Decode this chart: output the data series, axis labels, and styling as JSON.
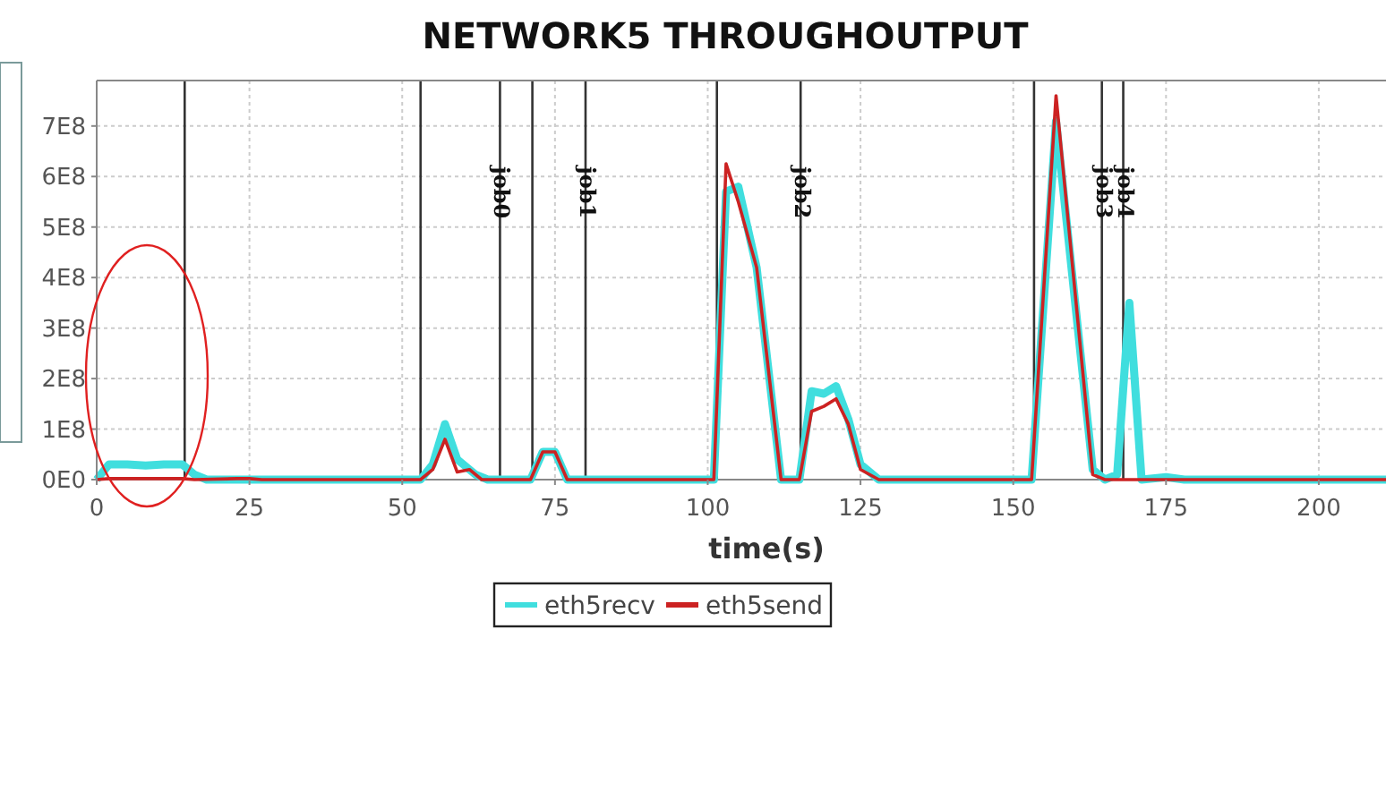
{
  "chart_data": {
    "type": "line",
    "title": "NETWORK5 THROUGHOUTPUT",
    "xlabel": "time(s)",
    "xlim": [
      0,
      211
    ],
    "xticks": [
      0,
      25,
      50,
      75,
      100,
      125,
      150,
      175,
      200
    ],
    "ylim": [
      0,
      790000000
    ],
    "yticks": [
      {
        "value": 0,
        "label": "0E0"
      },
      {
        "value": 100000000,
        "label": "1E8"
      },
      {
        "value": 200000000,
        "label": "2E8"
      },
      {
        "value": 300000000,
        "label": "3E8"
      },
      {
        "value": 400000000,
        "label": "4E8"
      },
      {
        "value": 500000000,
        "label": "5E8"
      },
      {
        "value": 600000000,
        "label": "6E8"
      },
      {
        "value": 700000000,
        "label": "7E8"
      }
    ],
    "grid": true,
    "legend": "bottom",
    "marker": "none",
    "line_style": "solid",
    "series": [
      {
        "name": "eth5recv",
        "color": "#40dede",
        "x": [
          0,
          2,
          5,
          8,
          11,
          14,
          16,
          18,
          53,
          55,
          57,
          59,
          62,
          64,
          71,
          73,
          75,
          77,
          101,
          103,
          105,
          108,
          112,
          115,
          117,
          119,
          121,
          123,
          125,
          128,
          153,
          157,
          163,
          165,
          167,
          169,
          171,
          175,
          178,
          211
        ],
        "values": [
          0,
          30000000,
          30000000,
          28000000,
          30000000,
          30000000,
          10000000,
          0,
          0,
          30000000,
          110000000,
          40000000,
          10000000,
          0,
          0,
          55000000,
          55000000,
          0,
          0,
          570000000,
          580000000,
          420000000,
          0,
          0,
          175000000,
          170000000,
          185000000,
          120000000,
          30000000,
          0,
          0,
          710000000,
          20000000,
          0,
          10000000,
          350000000,
          0,
          5000000,
          0,
          0
        ]
      },
      {
        "name": "eth5send",
        "color": "#cc2222",
        "x": [
          0,
          2,
          14,
          16,
          23,
          25,
          27,
          53,
          55,
          57,
          59,
          61,
          63,
          71,
          73,
          75,
          77,
          101,
          103,
          105,
          108,
          112,
          115,
          117,
          119,
          121,
          123,
          125,
          128,
          153,
          157,
          163,
          165,
          211
        ],
        "values": [
          0,
          2000000,
          2000000,
          0,
          2000000,
          2000000,
          0,
          0,
          20000000,
          80000000,
          15000000,
          20000000,
          0,
          0,
          55000000,
          55000000,
          0,
          0,
          625000000,
          550000000,
          420000000,
          0,
          0,
          135000000,
          145000000,
          160000000,
          110000000,
          20000000,
          0,
          0,
          760000000,
          10000000,
          0,
          0
        ]
      }
    ],
    "ref_lines": [
      {
        "axis": "x",
        "value": 14.4
      },
      {
        "axis": "x",
        "value": 53
      },
      {
        "axis": "x",
        "value": 66,
        "label": "job0"
      },
      {
        "axis": "x",
        "value": 71.3
      },
      {
        "axis": "x",
        "value": 80,
        "label": "job1"
      },
      {
        "axis": "x",
        "value": 101.5
      },
      {
        "axis": "x",
        "value": 115.2,
        "label": "job2"
      },
      {
        "axis": "x",
        "value": 153.4
      },
      {
        "axis": "x",
        "value": 164.5,
        "label": "job3"
      },
      {
        "axis": "x",
        "value": 168,
        "label": "job4"
      }
    ]
  }
}
